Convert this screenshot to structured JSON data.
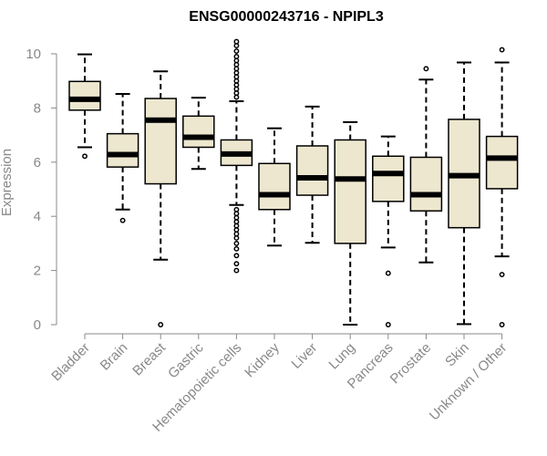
{
  "chart_data": {
    "type": "box",
    "title": "ENSG00000243716 - NPIPL3",
    "ylabel": "Expression",
    "ylim": [
      0,
      10.5
    ],
    "yticks": [
      0,
      2,
      4,
      6,
      8,
      10
    ],
    "ytick_labels": [
      "0",
      "2",
      "4",
      "6",
      "8",
      "10"
    ],
    "grid": false,
    "colors": {
      "box_fill": "#ede7cf",
      "stroke": "#000000",
      "axis_text": "#888888"
    },
    "categories": [
      "Bladder",
      "Brain",
      "Breast",
      "Gastric",
      "Hematopoietic cells",
      "Kidney",
      "Liver",
      "Lung",
      "Pancreas",
      "Prostate",
      "Skin",
      "Unknown / Other"
    ],
    "boxes": [
      {
        "whisker_low": 6.55,
        "q1": 7.92,
        "median": 8.32,
        "q3": 8.98,
        "whisker_high": 9.98,
        "outliers": [
          6.22
        ]
      },
      {
        "whisker_low": 4.25,
        "q1": 5.82,
        "median": 6.28,
        "q3": 7.05,
        "whisker_high": 8.52,
        "outliers": [
          3.85
        ]
      },
      {
        "whisker_low": 2.4,
        "q1": 5.2,
        "median": 7.55,
        "q3": 8.35,
        "whisker_high": 9.35,
        "outliers": [
          0.0
        ]
      },
      {
        "whisker_low": 5.75,
        "q1": 6.55,
        "median": 6.92,
        "q3": 7.7,
        "whisker_high": 8.38,
        "outliers": []
      },
      {
        "whisker_low": 4.42,
        "q1": 5.88,
        "median": 6.3,
        "q3": 6.82,
        "whisker_high": 8.25,
        "outliers": [
          2.0,
          2.25,
          2.55,
          2.8,
          3.0,
          3.2,
          3.35,
          3.5,
          3.65,
          3.8,
          3.95,
          4.1,
          4.25,
          8.4,
          8.55,
          8.7,
          8.85,
          9.0,
          9.15,
          9.3,
          9.45,
          9.6,
          9.75,
          9.9,
          10.1,
          10.3,
          10.45
        ]
      },
      {
        "whisker_low": 2.92,
        "q1": 4.25,
        "median": 4.8,
        "q3": 5.95,
        "whisker_high": 7.25,
        "outliers": []
      },
      {
        "whisker_low": 3.02,
        "q1": 4.78,
        "median": 5.42,
        "q3": 6.6,
        "whisker_high": 8.05,
        "outliers": []
      },
      {
        "whisker_low": 0.0,
        "q1": 3.0,
        "median": 5.38,
        "q3": 6.82,
        "whisker_high": 7.48,
        "outliers": []
      },
      {
        "whisker_low": 2.85,
        "q1": 4.55,
        "median": 5.58,
        "q3": 6.22,
        "whisker_high": 6.95,
        "outliers": [
          1.9,
          0.0
        ]
      },
      {
        "whisker_low": 2.3,
        "q1": 4.2,
        "median": 4.8,
        "q3": 6.18,
        "whisker_high": 9.05,
        "outliers": [
          9.45
        ]
      },
      {
        "whisker_low": 0.02,
        "q1": 3.58,
        "median": 5.5,
        "q3": 7.58,
        "whisker_high": 9.68,
        "outliers": []
      },
      {
        "whisker_low": 2.52,
        "q1": 5.02,
        "median": 6.15,
        "q3": 6.95,
        "whisker_high": 9.68,
        "outliers": [
          10.15,
          1.85,
          0.0
        ]
      }
    ]
  }
}
